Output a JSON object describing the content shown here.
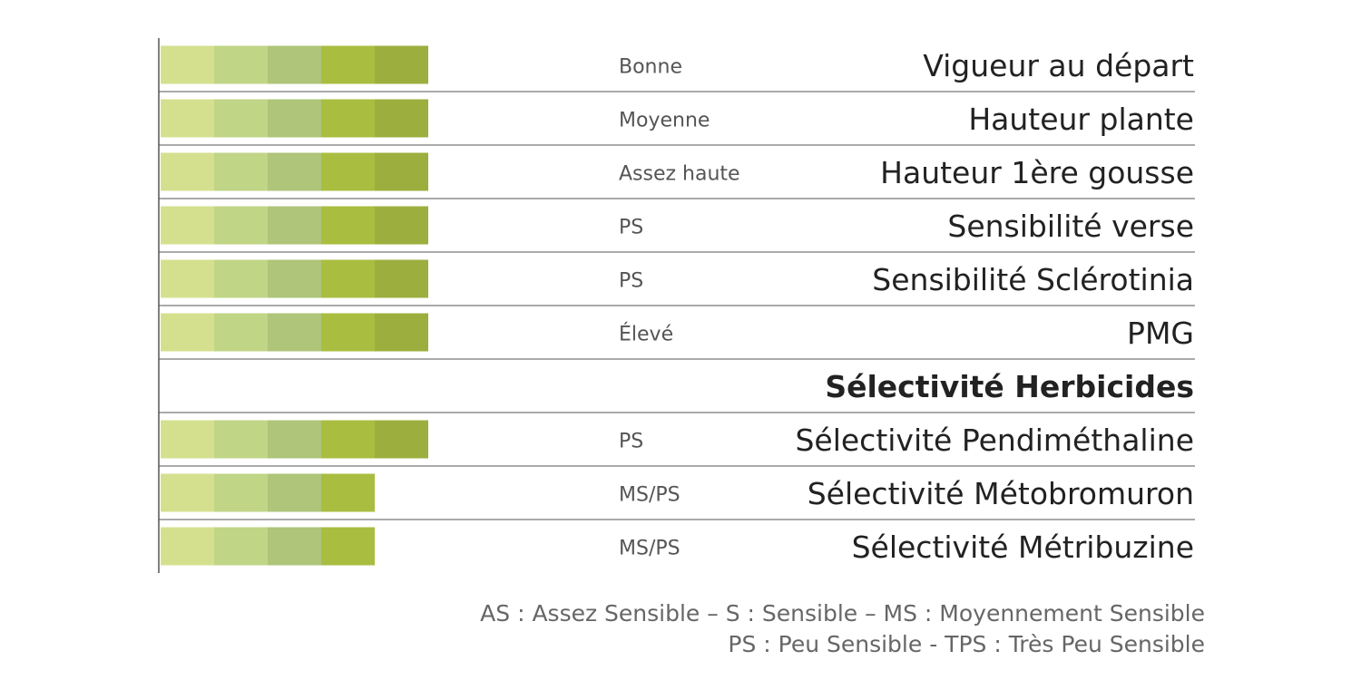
{
  "chart_data": {
    "type": "segmented-bar",
    "categories": [
      "Vigueur au départ",
      "Hauteur plante",
      "Hauteur 1ère gousse",
      "Sensibilité verse",
      "Sensibilité Sclérotinia",
      "PMG",
      "Sélectivité Herbicides",
      "Sélectivité Pendiméthaline",
      "Sélectivité Métobromuron",
      "Sélectivité Métribuzine"
    ],
    "value_labels": [
      "Bonne",
      "Moyenne",
      "Assez haute",
      "PS",
      "PS",
      "Élevé",
      null,
      "PS",
      "MS/PS",
      "MS/PS"
    ],
    "values": [
      5,
      5,
      5,
      5,
      5,
      5,
      null,
      5,
      4,
      4
    ],
    "segment_colors": [
      "#d5e08f",
      "#c0d586",
      "#aec57a",
      "#a9bd40",
      "#9caf3e"
    ],
    "notes": [
      "AS : Assez Sensible –  S : Sensible – MS : Moyennement Sensible",
      "PS : Peu Sensible - TPS : Très Peu Sensible"
    ]
  }
}
